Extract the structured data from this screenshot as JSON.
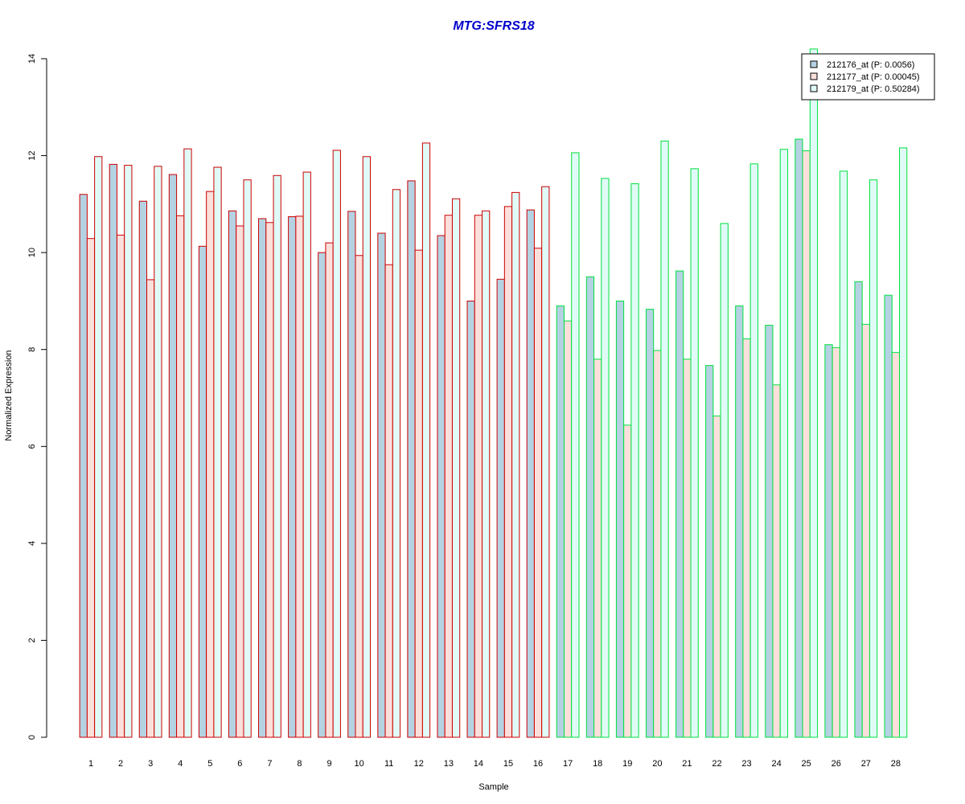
{
  "chart_data": {
    "type": "bar",
    "title": "MTG:SFRS18",
    "xlabel": "Sample",
    "ylabel": "Normalized Expression",
    "ylim": [
      0,
      14
    ],
    "yticks": [
      0,
      2,
      4,
      6,
      8,
      10,
      12,
      14
    ],
    "grid": false,
    "legend_position": "top-right",
    "categories": [
      "1",
      "2",
      "3",
      "4",
      "5",
      "6",
      "7",
      "8",
      "9",
      "10",
      "11",
      "12",
      "13",
      "14",
      "15",
      "16",
      "17",
      "18",
      "19",
      "20",
      "21",
      "22",
      "23",
      "24",
      "25",
      "26",
      "27",
      "28"
    ],
    "group_border_colors": [
      "#cc0000",
      "#00e040"
    ],
    "group_sizes": [
      16,
      12
    ],
    "series": [
      {
        "name": "212176_at (P: 0.0056)",
        "fill": "#b4d2e2",
        "values": [
          11.2,
          11.82,
          11.06,
          11.61,
          10.13,
          10.86,
          10.7,
          10.74,
          10.0,
          10.85,
          10.4,
          11.48,
          10.35,
          9.0,
          9.45,
          10.88,
          8.9,
          9.5,
          9.0,
          8.83,
          9.62,
          7.67,
          8.9,
          8.5,
          12.34,
          8.1,
          9.4,
          9.12
        ]
      },
      {
        "name": "212177_at (P: 0.00045)",
        "fill": "#fbdfdb",
        "values": [
          10.29,
          10.36,
          9.44,
          10.76,
          11.26,
          10.55,
          10.62,
          10.75,
          10.2,
          9.94,
          9.75,
          10.05,
          10.77,
          10.77,
          10.95,
          10.09,
          8.59,
          7.8,
          6.44,
          7.98,
          7.8,
          6.63,
          8.22,
          7.27,
          12.1,
          8.04,
          8.52,
          7.94
        ]
      },
      {
        "name": "212179_at (P: 0.50284)",
        "fill": "#e0fbf7",
        "values": [
          11.98,
          11.8,
          11.78,
          12.14,
          11.76,
          11.5,
          11.59,
          11.66,
          12.11,
          11.98,
          11.3,
          12.26,
          11.11,
          10.86,
          11.24,
          11.36,
          12.06,
          11.53,
          11.42,
          12.3,
          11.73,
          10.6,
          11.83,
          12.13,
          14.2,
          11.68,
          11.5,
          12.16
        ]
      }
    ]
  }
}
